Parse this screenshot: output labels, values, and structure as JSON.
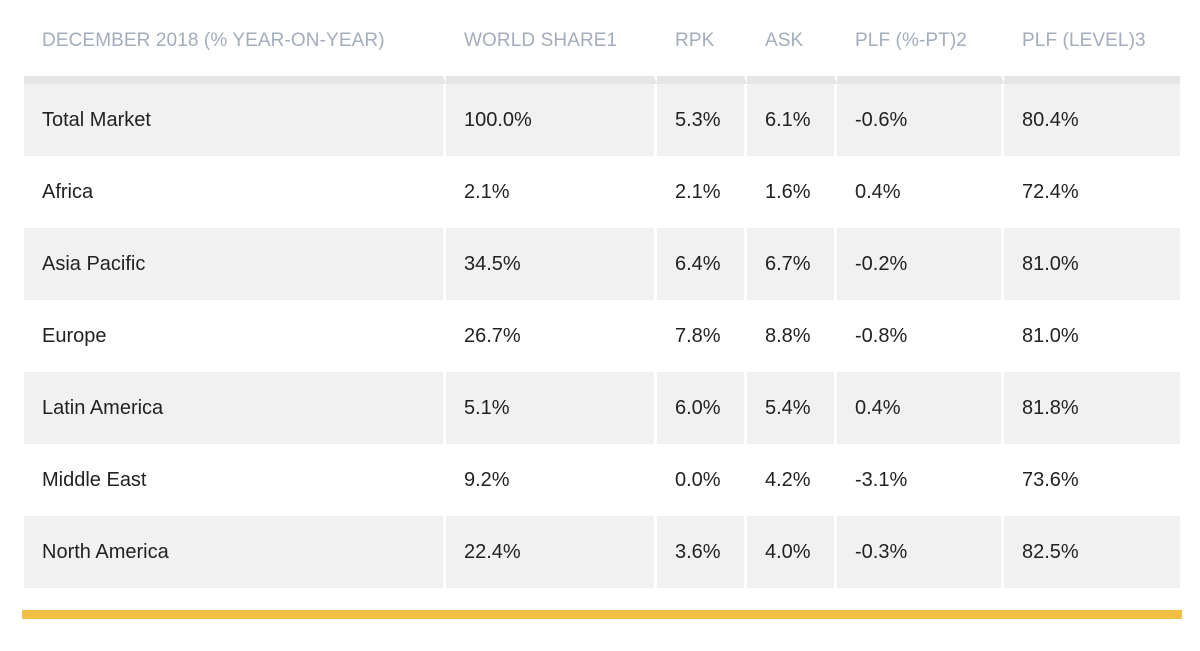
{
  "table": {
    "headers": [
      "DECEMBER 2018 (% YEAR-ON-YEAR)",
      "WORLD SHARE1",
      "RPK",
      "ASK",
      "PLF (%-PT)2",
      "PLF (LEVEL)3"
    ],
    "rows": [
      [
        "Total Market",
        "100.0%",
        "5.3%",
        "6.1%",
        "-0.6%",
        "80.4%"
      ],
      [
        "Africa",
        "2.1%",
        "2.1%",
        "1.6%",
        "0.4%",
        "72.4%"
      ],
      [
        "Asia Pacific",
        "34.5%",
        "6.4%",
        "6.7%",
        "-0.2%",
        "81.0%"
      ],
      [
        "Europe",
        "26.7%",
        "7.8%",
        "8.8%",
        "-0.8%",
        "81.0%"
      ],
      [
        "Latin America",
        "5.1%",
        "6.0%",
        "5.4%",
        "0.4%",
        "81.8%"
      ],
      [
        "Middle East",
        "9.2%",
        "0.0%",
        "4.2%",
        "-3.1%",
        "73.6%"
      ],
      [
        "North America",
        "22.4%",
        "3.6%",
        "4.0%",
        "-0.3%",
        "82.5%"
      ]
    ]
  },
  "colors": {
    "header_text": "#a3adbb",
    "row_shade": "#f1f1f1",
    "accent_rule": "#f2bf44"
  }
}
